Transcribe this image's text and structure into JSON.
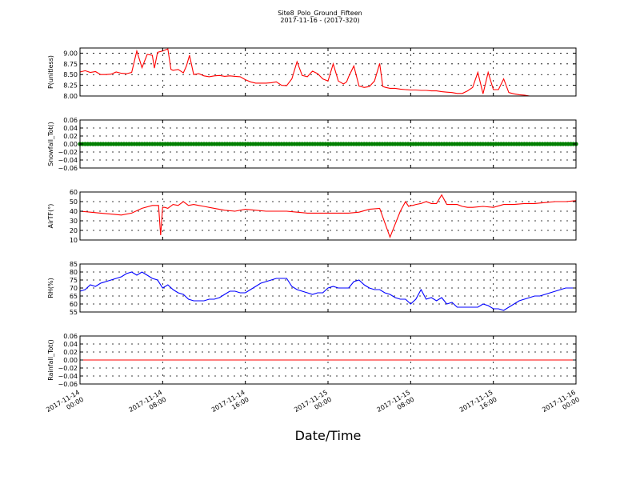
{
  "figure": {
    "title": "Site8_Polo_Ground_Fifteen",
    "subtitle": "2017-11-16 - (2017-320)",
    "xlabel": "Date/Time"
  },
  "chart_data": [
    {
      "type": "line",
      "ylabel": "P(unitless)",
      "ylim": [
        8.0,
        9.12
      ],
      "yticks": [
        "8.00",
        "8.25",
        "8.50",
        "8.75",
        "9.00"
      ],
      "yticks_values": [
        8.0,
        8.25,
        8.5,
        8.75,
        9.0
      ],
      "color": "#ff0000",
      "grid": true,
      "xlim": [
        0,
        48
      ],
      "x": [
        0,
        0.5,
        1,
        1.5,
        2,
        2.5,
        3,
        3.5,
        4,
        4.5,
        5,
        5.5,
        6,
        6.5,
        7,
        7.2,
        7.5,
        8,
        8.5,
        8.8,
        9,
        9.5,
        10,
        10.3,
        10.6,
        11,
        11.5,
        12,
        12.5,
        13,
        13.5,
        14,
        14.5,
        15,
        15.5,
        16,
        16.5,
        17,
        17.5,
        18,
        18.5,
        19,
        19.5,
        20,
        20.5,
        21,
        21.5,
        22,
        22.5,
        23,
        23.5,
        24,
        24.5,
        25,
        25.5,
        25.8,
        26,
        26.5,
        27,
        27.2,
        27.5,
        28,
        28.5,
        29,
        29.3,
        29.6,
        30,
        30.5,
        31,
        31.5,
        32,
        32.5,
        33,
        33.5,
        34,
        34.5,
        35,
        35.5,
        36,
        36.5,
        37,
        37.5,
        38,
        38.5,
        39,
        39.5,
        40,
        40.5,
        41,
        41.5,
        42,
        42.5,
        43,
        43.5,
        44,
        44.3,
        44.6,
        45,
        45.5,
        46,
        46.5,
        47,
        47.5,
        48
      ],
      "y": [
        8.56,
        8.59,
        8.55,
        8.57,
        8.5,
        8.5,
        8.51,
        8.56,
        8.53,
        8.52,
        8.55,
        9.05,
        8.66,
        8.97,
        8.95,
        8.65,
        9.02,
        9.05,
        9.1,
        8.62,
        8.6,
        8.62,
        8.54,
        8.7,
        8.95,
        8.5,
        8.52,
        8.47,
        8.45,
        8.47,
        8.48,
        8.46,
        8.47,
        8.46,
        8.45,
        8.38,
        8.33,
        8.3,
        8.3,
        8.3,
        8.31,
        8.33,
        8.25,
        8.24,
        8.4,
        8.8,
        8.48,
        8.45,
        8.58,
        8.52,
        8.4,
        8.35,
        8.75,
        8.35,
        8.28,
        8.33,
        8.45,
        8.7,
        8.23,
        8.22,
        8.2,
        8.22,
        8.35,
        8.76,
        8.22,
        8.2,
        8.18,
        8.18,
        8.16,
        8.15,
        8.14,
        8.14,
        8.13,
        8.13,
        8.12,
        8.12,
        8.1,
        8.09,
        8.08,
        8.06,
        8.06,
        8.12,
        8.2,
        8.55,
        8.05,
        8.55,
        8.15,
        8.15,
        8.4,
        8.08,
        8.05,
        8.03,
        8.02,
        8.0,
        8.0,
        8.0,
        8.0,
        8.0,
        8.0,
        8.0,
        8.0,
        8.0,
        8.0,
        8.0
      ]
    },
    {
      "type": "scatter",
      "ylabel": "Snowfall_Tot()",
      "ylim": [
        -0.06,
        0.06
      ],
      "yticks": [
        "−0.06",
        "−0.04",
        "−0.02",
        "0.00",
        "0.02",
        "0.04",
        "0.06"
      ],
      "yticks_values": [
        -0.06,
        -0.04,
        -0.02,
        0.0,
        0.02,
        0.04,
        0.06
      ],
      "color": "#007f00",
      "grid": true,
      "xlim": [
        0,
        48
      ],
      "constant_value": 0.0,
      "sample_interval_hours": 0.25
    },
    {
      "type": "line",
      "ylabel": "AirTF(°)",
      "ylim": [
        10,
        60
      ],
      "yticks": [
        "10",
        "20",
        "30",
        "40",
        "50",
        "60"
      ],
      "yticks_values": [
        10,
        20,
        30,
        40,
        50,
        60
      ],
      "color": "#ff0000",
      "grid": true,
      "xlim": [
        0,
        48
      ],
      "x": [
        0,
        1,
        2,
        3,
        4,
        5,
        6,
        7,
        7.6,
        7.8,
        8.0,
        8.2,
        8.5,
        9,
        9.5,
        10,
        10.5,
        11,
        11.5,
        12,
        13,
        14,
        15,
        16,
        17,
        18,
        19,
        20,
        21,
        22,
        23,
        24,
        25,
        26,
        27,
        28,
        29,
        30,
        31,
        31.5,
        31.8,
        32,
        32.2,
        32.5,
        33,
        33.5,
        34,
        34.5,
        35,
        35.5,
        36,
        36.5,
        37,
        37.5,
        38,
        39,
        40,
        41,
        42,
        43,
        44,
        45,
        46,
        47,
        48
      ],
      "y": [
        40,
        39,
        38,
        37,
        36,
        38,
        43,
        46,
        46,
        15,
        44,
        44,
        43,
        47,
        46,
        50,
        46,
        47,
        46,
        45,
        43,
        41,
        40,
        42,
        41,
        40,
        40,
        40,
        39,
        38,
        38,
        38,
        38,
        38,
        39,
        42,
        43,
        13,
        40,
        50,
        45,
        46,
        46,
        47,
        48,
        50,
        48,
        48,
        57,
        47,
        47,
        47,
        45,
        44,
        44,
        45,
        44,
        47,
        47,
        48,
        48,
        49,
        50,
        50,
        51
      ]
    },
    {
      "type": "line",
      "ylabel": "RH(%)",
      "ylim": [
        55,
        85
      ],
      "yticks": [
        "55",
        "60",
        "65",
        "70",
        "75",
        "80",
        "85"
      ],
      "yticks_values": [
        55,
        60,
        65,
        70,
        75,
        80,
        85
      ],
      "color": "#0000ff",
      "grid": true,
      "xlim": [
        0,
        48
      ],
      "x": [
        0,
        0.5,
        1,
        1.5,
        2,
        2.5,
        3,
        3.5,
        4,
        4.5,
        5,
        5.5,
        6,
        6.5,
        7,
        7.5,
        8,
        8.5,
        9,
        9.5,
        10,
        10.5,
        11,
        11.5,
        12,
        12.5,
        13,
        13.5,
        14,
        14.5,
        15,
        15.5,
        16,
        16.5,
        17,
        17.5,
        18,
        18.5,
        19,
        19.5,
        20,
        20.5,
        21,
        21.5,
        22,
        22.5,
        23,
        23.5,
        24,
        24.5,
        25,
        25.5,
        26,
        26.5,
        27,
        27.5,
        28,
        28.5,
        29,
        29.5,
        30,
        30.5,
        31,
        31.5,
        32,
        32.5,
        33,
        33.5,
        34,
        34.5,
        35,
        35.5,
        36,
        36.5,
        37,
        37.5,
        38,
        38.5,
        39,
        39.5,
        40,
        40.5,
        41,
        41.5,
        42,
        42.5,
        43,
        43.5,
        44,
        44.5,
        45,
        45.5,
        46,
        46.5,
        47,
        47.5,
        48
      ],
      "y": [
        68,
        69,
        72,
        71,
        73,
        74,
        75,
        76,
        77,
        79,
        80,
        78,
        80,
        78,
        76,
        75,
        70,
        72,
        69,
        67,
        66,
        63,
        62,
        62,
        62,
        63,
        63,
        64,
        66,
        68,
        68,
        67,
        67,
        69,
        71,
        73,
        74,
        75,
        76,
        76,
        76,
        71,
        69,
        68,
        67,
        66,
        67,
        67,
        70,
        71,
        70,
        70,
        70,
        74,
        75,
        72,
        70,
        69,
        69,
        67,
        66,
        64,
        63,
        63,
        60,
        63,
        69,
        63,
        64,
        62,
        64,
        60,
        61,
        58,
        58,
        58,
        58,
        58,
        60,
        59,
        57,
        57,
        56,
        58,
        60,
        62,
        63,
        64,
        65,
        65,
        66,
        67,
        68,
        69,
        70,
        70,
        70
      ],
      "grid_dashed": true
    },
    {
      "type": "line",
      "ylabel": "Rainfall_Tot()",
      "ylim": [
        -0.06,
        0.06
      ],
      "yticks": [
        "−0.06",
        "−0.04",
        "−0.02",
        "0.00",
        "0.02",
        "0.04",
        "0.06"
      ],
      "yticks_values": [
        -0.06,
        -0.04,
        -0.02,
        0.0,
        0.02,
        0.04,
        0.06
      ],
      "color": "#ff0000",
      "grid": true,
      "xlim": [
        0,
        48
      ],
      "x": [
        0,
        48
      ],
      "y": [
        0.0,
        0.0
      ]
    }
  ],
  "x_ticks": {
    "values": [
      0,
      8,
      16,
      24,
      32,
      40,
      48
    ],
    "labels_line1": [
      "2017-11-14",
      "2017-11-14",
      "2017-11-14",
      "2017-11-15",
      "2017-11-15",
      "2017-11-15",
      "2017-11-16"
    ],
    "labels_line2": [
      "00:00",
      "08:00",
      "16:00",
      "00:00",
      "08:00",
      "16:00",
      "00:00"
    ]
  }
}
